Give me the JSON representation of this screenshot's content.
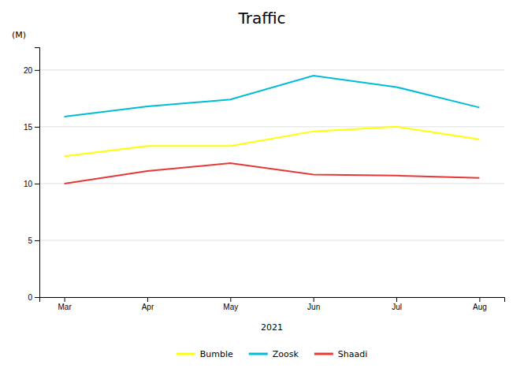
{
  "chart_data": {
    "type": "line",
    "title": "Traffic",
    "x_label": "2021",
    "y_label": "(M)",
    "categories": [
      "Mar",
      "Apr",
      "May",
      "Jun",
      "Jul",
      "Aug"
    ],
    "series": [
      {
        "name": "Bumble",
        "color": "#ffff00",
        "values": [
          12.4,
          13.3,
          13.3,
          14.6,
          15.0,
          13.9
        ]
      },
      {
        "name": "Zoosk",
        "color": "#00bcd4",
        "values": [
          15.9,
          16.8,
          17.4,
          19.5,
          18.5,
          16.7
        ]
      },
      {
        "name": "Shaadi",
        "color": "#e53935",
        "values": [
          10.0,
          11.1,
          11.8,
          10.8,
          10.7,
          10.5
        ]
      }
    ],
    "ylim": [
      0,
      22
    ],
    "yticks": [
      0,
      5,
      10,
      15,
      20
    ],
    "grid": true,
    "legend": "bottom"
  }
}
